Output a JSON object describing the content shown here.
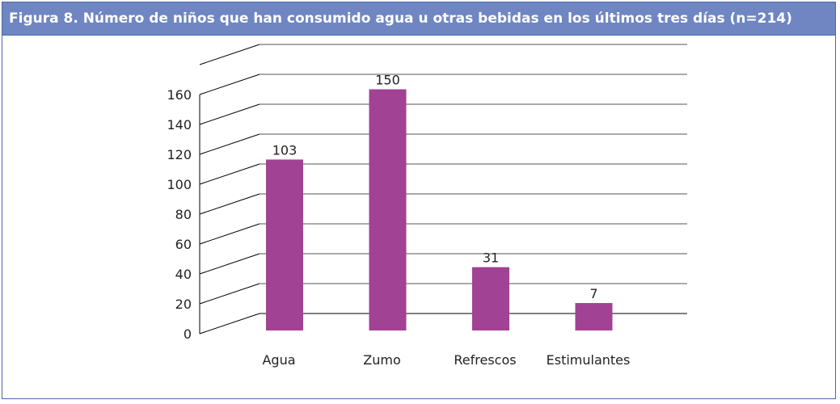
{
  "title": "Figura 8.  Número de niños que han consumido agua u otras bebidas en los últimos tres días (n=214)",
  "colors": {
    "bar": "#a14294",
    "header": "#6f86c2",
    "border": "#4a6aa8"
  },
  "chart_data": {
    "type": "bar",
    "title": "Figura 8.  Número de niños que han consumido agua u otras bebidas en los últimos tres días (n=214)",
    "categories": [
      "Agua",
      "Zumo",
      "Refrescos",
      "Estimulantes"
    ],
    "values": [
      103,
      150,
      31,
      7
    ],
    "data_labels": [
      "103",
      "150",
      "31",
      "7"
    ],
    "ylim": [
      0,
      160
    ],
    "yticks": [
      0,
      20,
      40,
      60,
      80,
      100,
      120,
      140,
      160
    ],
    "grid": true,
    "legend": "none",
    "style": "3d-column"
  }
}
